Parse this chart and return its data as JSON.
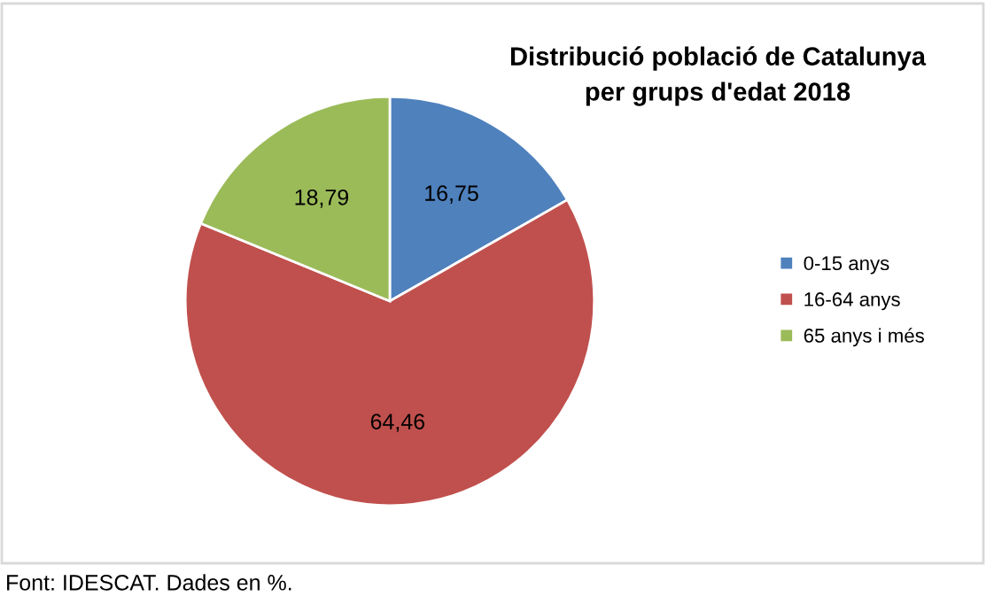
{
  "chart_data": {
    "type": "pie",
    "title": "Distribució població de Catalunya\nper grups d'edat 2018",
    "categories": [
      "0-15 anys",
      "16-64 anys",
      "65 anys i més"
    ],
    "values": [
      16.75,
      64.46,
      18.79
    ],
    "value_labels": [
      "16,75",
      "64,46",
      "18,79"
    ],
    "colors": [
      "#4f81bd",
      "#c0504d",
      "#9bbb59"
    ],
    "legend": "right",
    "annotations": [
      "Font: IDESCAT. Dades en %."
    ]
  }
}
